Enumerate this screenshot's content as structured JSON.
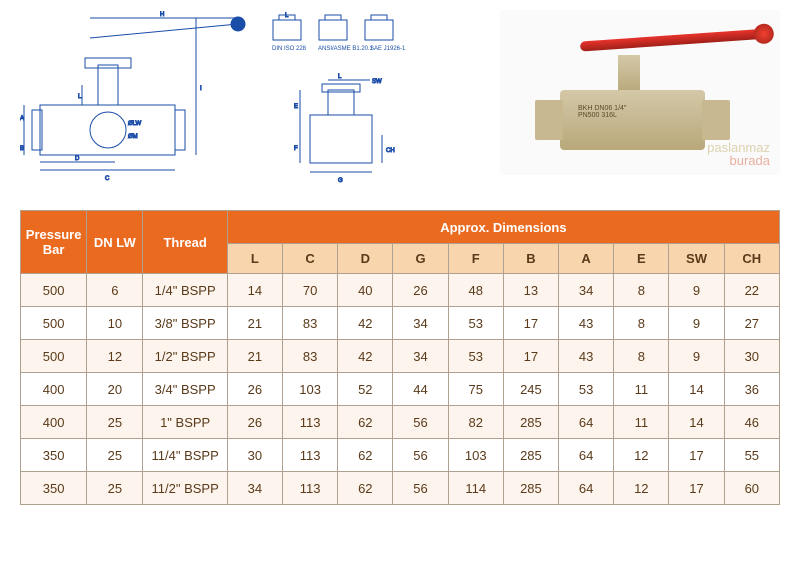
{
  "diagram": {
    "thread_standards": [
      "DIN ISO 228",
      "ANSI/ASME B1.20.1",
      "SAE J1926-1"
    ],
    "dim_labels": [
      "H",
      "L",
      "I",
      "A",
      "B",
      "D",
      "C",
      "ØLW",
      "ØM",
      "SW",
      "L",
      "E",
      "F",
      "CH",
      "G"
    ]
  },
  "photo": {
    "body_text_line1": "BKH DN06 1/4\"",
    "body_text_line2": "PN500   316L",
    "watermark_a": "paslanmaz",
    "watermark_b": "burada"
  },
  "table": {
    "header_main": [
      "Pressure Bar",
      "DN LW",
      "Thread",
      "Approx. Dimensions"
    ],
    "header_sub": [
      "L",
      "C",
      "D",
      "G",
      "F",
      "B",
      "A",
      "E",
      "SW",
      "CH"
    ],
    "rows": [
      [
        "500",
        "6",
        "1/4\" BSPP",
        "14",
        "70",
        "40",
        "26",
        "48",
        "13",
        "34",
        "8",
        "9",
        "22"
      ],
      [
        "500",
        "10",
        "3/8\" BSPP",
        "21",
        "83",
        "42",
        "34",
        "53",
        "17",
        "43",
        "8",
        "9",
        "27"
      ],
      [
        "500",
        "12",
        "1/2\" BSPP",
        "21",
        "83",
        "42",
        "34",
        "53",
        "17",
        "43",
        "8",
        "9",
        "30"
      ],
      [
        "400",
        "20",
        "3/4\" BSPP",
        "26",
        "103",
        "52",
        "44",
        "75",
        "245",
        "53",
        "11",
        "14",
        "36"
      ],
      [
        "400",
        "25",
        "1\" BSPP",
        "26",
        "113",
        "62",
        "56",
        "82",
        "285",
        "64",
        "11",
        "14",
        "46"
      ],
      [
        "350",
        "25",
        "11/4\" BSPP",
        "30",
        "113",
        "62",
        "56",
        "103",
        "285",
        "64",
        "12",
        "17",
        "55"
      ],
      [
        "350",
        "25",
        "11/2\" BSPP",
        "34",
        "113",
        "62",
        "56",
        "114",
        "285",
        "64",
        "12",
        "17",
        "60"
      ]
    ],
    "colors": {
      "header_bg": "#ea6a20",
      "header_fg": "#ffffff",
      "subheader_bg": "#f8d5ad",
      "subheader_fg": "#5a3a1a",
      "row_bg": "#fdf5ed",
      "row_alt_bg": "#ffffff",
      "cell_fg": "#5a3a1a",
      "border": "#b0a090"
    }
  }
}
